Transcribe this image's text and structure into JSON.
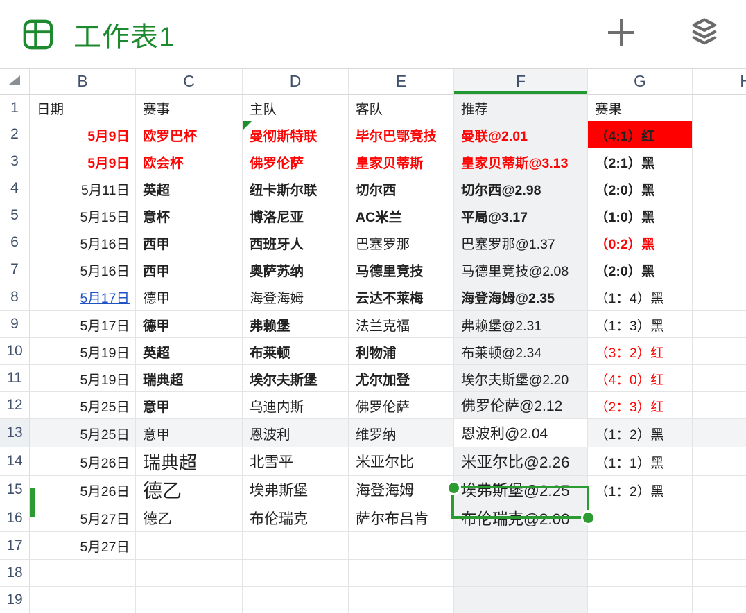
{
  "header": {
    "title": "工作表1",
    "icons": {
      "app": "table-grid-icon",
      "add": "plus-icon",
      "sheets": "layers-icon",
      "corner": "select-all-triangle"
    }
  },
  "colors": {
    "accent_green": "#219930",
    "title_green": "#1e8a2f",
    "red_text": "#fe0404",
    "result_red_bg": "#ff0000",
    "link_blue": "#1f52c4"
  },
  "selection": {
    "cell": "F13",
    "value": "恩波利@2.04",
    "row": "13",
    "column": "F"
  },
  "grid": {
    "columns": [
      "B",
      "C",
      "D",
      "E",
      "F",
      "G",
      "H"
    ],
    "selected_column": "F",
    "rows": [
      {
        "n": "1",
        "cells": {
          "B": {
            "t": "日期"
          },
          "C": {
            "t": "赛事"
          },
          "D": {
            "t": "主队"
          },
          "E": {
            "t": "客队"
          },
          "F": {
            "t": "推荐"
          },
          "G": {
            "t": "赛果"
          }
        }
      },
      {
        "n": "2",
        "cells": {
          "B": {
            "t": "5月9日",
            "s": "rb right"
          },
          "C": {
            "t": "欧罗巴杯",
            "s": "rb"
          },
          "D": {
            "t": "曼彻斯特联",
            "s": "rb cmt"
          },
          "E": {
            "t": "毕尔巴鄂竞技",
            "s": "rb"
          },
          "F": {
            "t": "曼联@2.01",
            "s": "rb"
          },
          "G": {
            "t": "（4:1）红",
            "s": "b bgred"
          }
        }
      },
      {
        "n": "3",
        "cells": {
          "B": {
            "t": "5月9日",
            "s": "rb right"
          },
          "C": {
            "t": "欧会杯",
            "s": "rb"
          },
          "D": {
            "t": "佛罗伦萨",
            "s": "rb"
          },
          "E": {
            "t": "皇家贝蒂斯",
            "s": "rb"
          },
          "F": {
            "t": "皇家贝蒂斯@3.13",
            "s": "rb"
          },
          "G": {
            "t": "（2:1）黑",
            "s": "b"
          }
        }
      },
      {
        "n": "4",
        "cells": {
          "B": {
            "t": "5月11日",
            "s": "right"
          },
          "C": {
            "t": "英超",
            "s": "b"
          },
          "D": {
            "t": "纽卡斯尔联",
            "s": "b"
          },
          "E": {
            "t": "切尔西",
            "s": "b"
          },
          "F": {
            "t": "切尔西@2.98",
            "s": "b"
          },
          "G": {
            "t": "（2:0）黑",
            "s": "b"
          }
        }
      },
      {
        "n": "5",
        "cells": {
          "B": {
            "t": "5月15日",
            "s": "right"
          },
          "C": {
            "t": "意杯",
            "s": "b"
          },
          "D": {
            "t": "博洛尼亚",
            "s": "b"
          },
          "E": {
            "t": "AC米兰",
            "s": "b"
          },
          "F": {
            "t": "平局@3.17",
            "s": "b"
          },
          "G": {
            "t": "（1:0）黑",
            "s": "b"
          }
        }
      },
      {
        "n": "6",
        "cells": {
          "B": {
            "t": "5月16日",
            "s": "right"
          },
          "C": {
            "t": "西甲",
            "s": "b"
          },
          "D": {
            "t": "西班牙人",
            "s": "b"
          },
          "E": {
            "t": "巴塞罗那"
          },
          "F": {
            "t": "巴塞罗那@1.37"
          },
          "G": {
            "t": "（0:2）黑",
            "s": "rb"
          }
        }
      },
      {
        "n": "7",
        "cells": {
          "B": {
            "t": "5月16日",
            "s": "right"
          },
          "C": {
            "t": "西甲",
            "s": "b"
          },
          "D": {
            "t": "奥萨苏纳",
            "s": "b"
          },
          "E": {
            "t": "马德里竞技",
            "s": "b"
          },
          "F": {
            "t": "马德里竞技@2.08"
          },
          "G": {
            "t": "（2:0）黑",
            "s": "b"
          }
        }
      },
      {
        "n": "8",
        "cells": {
          "B": {
            "t": "5月17日",
            "s": "link right"
          },
          "C": {
            "t": "德甲"
          },
          "D": {
            "t": "海登海姆"
          },
          "E": {
            "t": "云达不莱梅",
            "s": "b"
          },
          "F": {
            "t": "海登海姆@2.35",
            "s": "b"
          },
          "G": {
            "t": "（1：4）黑"
          }
        }
      },
      {
        "n": "9",
        "cells": {
          "B": {
            "t": "5月17日",
            "s": "right"
          },
          "C": {
            "t": "德甲",
            "s": "b"
          },
          "D": {
            "t": "弗赖堡",
            "s": "b"
          },
          "E": {
            "t": "法兰克福"
          },
          "F": {
            "t": "弗赖堡@2.31"
          },
          "G": {
            "t": "（1：3）黑"
          }
        }
      },
      {
        "n": "10",
        "cells": {
          "B": {
            "t": "5月19日",
            "s": "right"
          },
          "C": {
            "t": "英超",
            "s": "b"
          },
          "D": {
            "t": "布莱顿",
            "s": "b"
          },
          "E": {
            "t": "利物浦",
            "s": "b"
          },
          "F": {
            "t": "布莱顿@2.34"
          },
          "G": {
            "t": "（3：2）红",
            "s": "r"
          }
        }
      },
      {
        "n": "11",
        "cells": {
          "B": {
            "t": "5月19日",
            "s": "right"
          },
          "C": {
            "t": "瑞典超",
            "s": "b"
          },
          "D": {
            "t": "埃尔夫斯堡",
            "s": "b"
          },
          "E": {
            "t": "尤尔加登",
            "s": "b"
          },
          "F": {
            "t": "埃尔夫斯堡@2.20"
          },
          "G": {
            "t": "（4：0）红",
            "s": "r"
          }
        }
      },
      {
        "n": "12",
        "cells": {
          "B": {
            "t": "5月25日",
            "s": "right"
          },
          "C": {
            "t": "意甲",
            "s": "b"
          },
          "D": {
            "t": "乌迪内斯"
          },
          "E": {
            "t": "佛罗伦萨"
          },
          "F": {
            "t": "佛罗伦萨@2.12",
            "s": "md"
          },
          "G": {
            "t": "（2：3）红",
            "s": "r"
          }
        }
      },
      {
        "n": "13",
        "selected": true,
        "cells": {
          "B": {
            "t": "5月25日",
            "s": "right"
          },
          "C": {
            "t": "意甲"
          },
          "D": {
            "t": "恩波利"
          },
          "E": {
            "t": "维罗纳"
          },
          "F": {
            "t": "恩波利@2.04",
            "s": "sel md"
          },
          "G": {
            "t": "（1：2）黑"
          }
        }
      },
      {
        "n": "14",
        "cells": {
          "B": {
            "t": "5月26日",
            "s": "right"
          },
          "C": {
            "t": "瑞典超",
            "s": "big"
          },
          "D": {
            "t": "北雪平",
            "s": "md"
          },
          "E": {
            "t": "米亚尔比",
            "s": "md"
          },
          "F": {
            "t": "米亚尔比@2.26",
            "s": "lg"
          },
          "G": {
            "t": "（1：1）黑"
          }
        }
      },
      {
        "n": "15",
        "cells": {
          "B": {
            "t": "5月26日",
            "s": "right"
          },
          "C": {
            "t": "德乙",
            "s": "xl"
          },
          "D": {
            "t": "埃弗斯堡",
            "s": "md"
          },
          "E": {
            "t": "海登海姆",
            "s": "md"
          },
          "F": {
            "t": "埃弗斯堡@2.25",
            "s": "lg"
          },
          "G": {
            "t": "（1：2）黑"
          }
        }
      },
      {
        "n": "16",
        "cells": {
          "B": {
            "t": "5月27日",
            "s": "right"
          },
          "C": {
            "t": "德乙",
            "s": "md"
          },
          "D": {
            "t": "布伦瑞克",
            "s": "md"
          },
          "E": {
            "t": "萨尔布吕肯",
            "s": "md"
          },
          "F": {
            "t": "布伦瑞克@2.00",
            "s": "lg"
          }
        }
      },
      {
        "n": "17",
        "cells": {
          "B": {
            "t": "5月27日",
            "s": "right"
          }
        }
      },
      {
        "n": "18",
        "cells": {}
      },
      {
        "n": "19",
        "cells": {}
      }
    ]
  }
}
